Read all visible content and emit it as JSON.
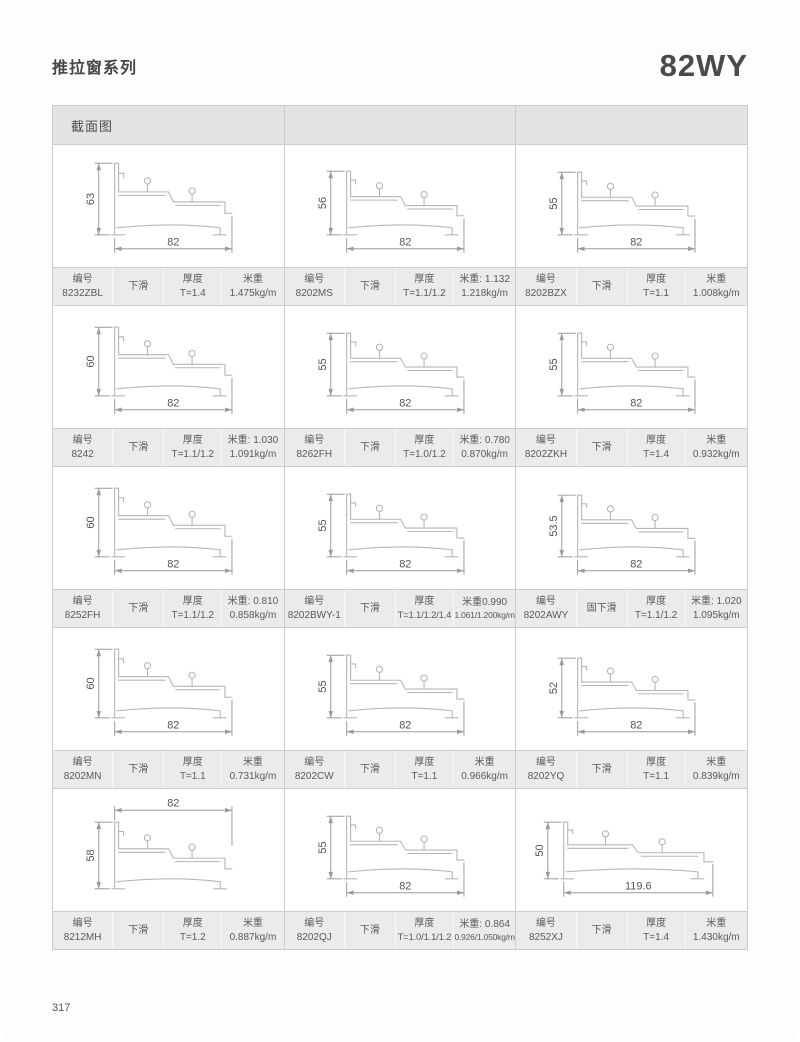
{
  "page": {
    "series_title": "推拉窗系列",
    "model": "82WY",
    "section_header": "截面图",
    "page_number": "317"
  },
  "spec_labels": {
    "code": "编号",
    "thickness": "厚度"
  },
  "colors": {
    "table_border": "#cccccc",
    "spec_bg": "#ebebeb",
    "header_bg": "#e3e3e3",
    "profile_stroke": "#b6b6b6",
    "dim_stroke": "#9b9b9b",
    "dim_text": "#555555"
  },
  "cells": [
    {
      "code": "8232ZBL",
      "type": "下滑",
      "thickness_label": "厚度",
      "thickness": "T=1.4",
      "weight_line1": "米重",
      "weight_line2": "1.475kg/m",
      "dim_height": "63",
      "dim_width": "82",
      "dim_position": "bottom",
      "wide": false
    },
    {
      "code": "8202MS",
      "type": "下滑",
      "thickness_label": "厚度",
      "thickness": "T=1.1/1.2",
      "weight_line1": "米重: 1.132",
      "weight_line2": "1.218kg/m",
      "dim_height": "56",
      "dim_width": "82",
      "dim_position": "bottom",
      "wide": false
    },
    {
      "code": "8202BZX",
      "type": "下滑",
      "thickness_label": "厚度",
      "thickness": "T=1.1",
      "weight_line1": "米重",
      "weight_line2": "1.008kg/m",
      "dim_height": "55",
      "dim_width": "82",
      "dim_position": "bottom",
      "wide": false
    },
    {
      "code": "8242",
      "type": "下滑",
      "thickness_label": "厚度",
      "thickness": "T=1.1/1.2",
      "weight_line1": "米重: 1.030",
      "weight_line2": "1.091kg/m",
      "dim_height": "60",
      "dim_width": "82",
      "dim_position": "bottom",
      "wide": false
    },
    {
      "code": "8262FH",
      "type": "下滑",
      "thickness_label": "厚度",
      "thickness": "T=1.0/1.2",
      "weight_line1": "米重: 0.780",
      "weight_line2": "0.870kg/m",
      "dim_height": "55",
      "dim_width": "82",
      "dim_position": "bottom",
      "wide": false
    },
    {
      "code": "8202ZKH",
      "type": "下滑",
      "thickness_label": "厚度",
      "thickness": "T=1.4",
      "weight_line1": "米重",
      "weight_line2": "0.932kg/m",
      "dim_height": "55",
      "dim_width": "82",
      "dim_position": "bottom",
      "wide": false
    },
    {
      "code": "8252FH",
      "type": "下滑",
      "thickness_label": "厚度",
      "thickness": "T=1.1/1.2",
      "weight_line1": "米重: 0.810",
      "weight_line2": "0.858kg/m",
      "dim_height": "60",
      "dim_width": "82",
      "dim_position": "bottom",
      "wide": false
    },
    {
      "code": "8202BWY-1",
      "type": "下滑",
      "thickness_label": "厚度",
      "thickness": "T=1.1/1.2/1.4",
      "weight_line1": "米重0.990",
      "weight_line2": "1.061/1.200kg/m",
      "dim_height": "55",
      "dim_width": "82",
      "dim_position": "bottom",
      "wide": false
    },
    {
      "code": "8202AWY",
      "type": "固下滑",
      "thickness_label": "厚度",
      "thickness": "T=1.1/1.2",
      "weight_line1": "米重: 1.020",
      "weight_line2": "1.095kg/m",
      "dim_height": "53.5",
      "dim_width": "82",
      "dim_position": "bottom",
      "wide": false
    },
    {
      "code": "8202MN",
      "type": "下滑",
      "thickness_label": "厚度",
      "thickness": "T=1.1",
      "weight_line1": "米重",
      "weight_line2": "0.731kg/m",
      "dim_height": "60",
      "dim_width": "82",
      "dim_position": "bottom",
      "wide": false
    },
    {
      "code": "8202CW",
      "type": "下滑",
      "thickness_label": "厚度",
      "thickness": "T=1.1",
      "weight_line1": "米重",
      "weight_line2": "0.966kg/m",
      "dim_height": "55",
      "dim_width": "82",
      "dim_position": "bottom",
      "wide": false
    },
    {
      "code": "8202YQ",
      "type": "下滑",
      "thickness_label": "厚度",
      "thickness": "T=1.1",
      "weight_line1": "米重",
      "weight_line2": "0.839kg/m",
      "dim_height": "52",
      "dim_width": "82",
      "dim_position": "bottom",
      "wide": false
    },
    {
      "code": "8212MH",
      "type": "下滑",
      "thickness_label": "厚度",
      "thickness": "T=1.2",
      "weight_line1": "米重",
      "weight_line2": "0.887kg/m",
      "dim_height": "58",
      "dim_width": "82",
      "dim_position": "top",
      "wide": false
    },
    {
      "code": "8202QJ",
      "type": "下滑",
      "thickness_label": "厚度",
      "thickness": "T=1.0/1.1/1.2",
      "weight_line1": "米重: 0.864",
      "weight_line2": "0.926/1.050kg/m",
      "dim_height": "55",
      "dim_width": "82",
      "dim_position": "bottom",
      "wide": false
    },
    {
      "code": "8252XJ",
      "type": "下滑",
      "thickness_label": "厚度",
      "thickness": "T=1.4",
      "weight_line1": "米重",
      "weight_line2": "1.430kg/m",
      "dim_height": "50",
      "dim_width": "119.6",
      "dim_position": "bottom",
      "wide": true
    }
  ]
}
